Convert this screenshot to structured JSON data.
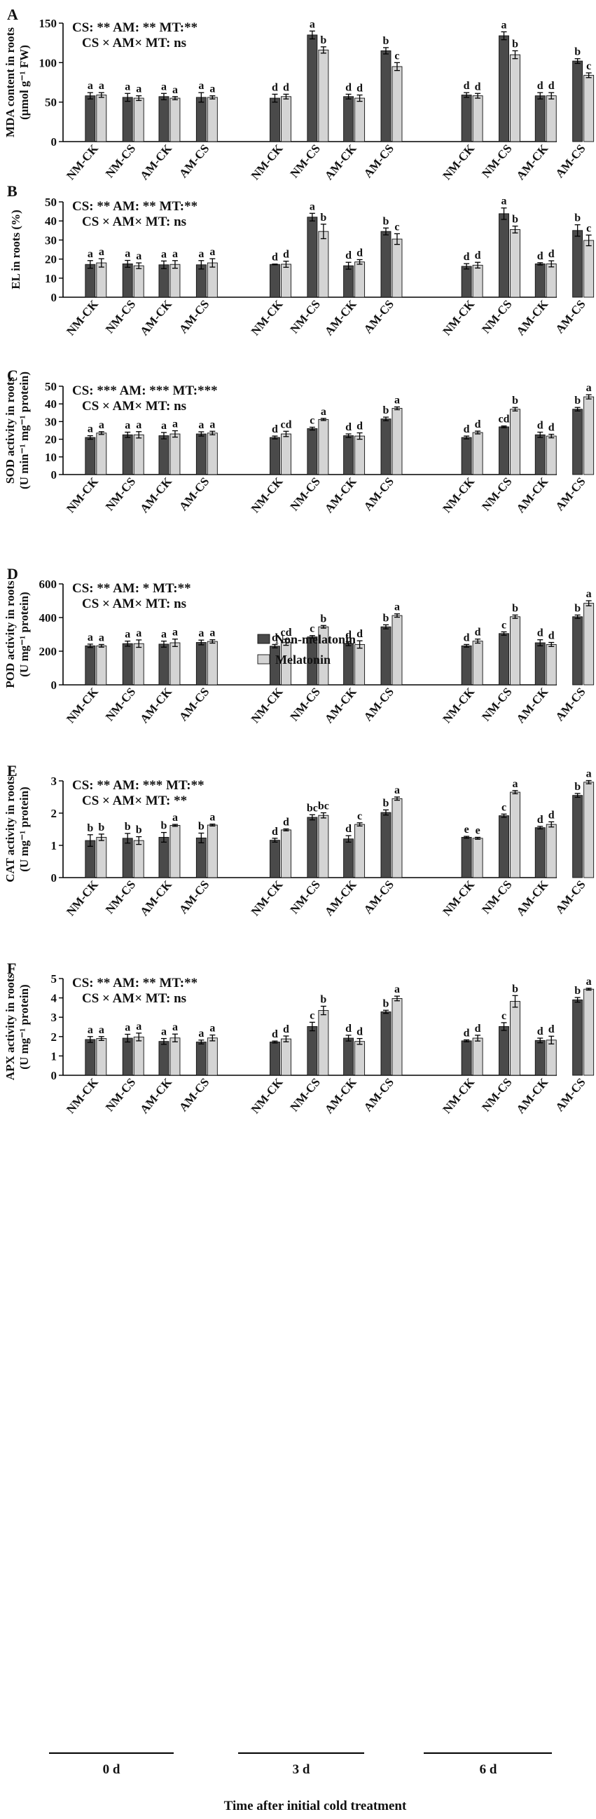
{
  "figure": {
    "xaxis_title": "Time after initial cold treatment",
    "time_groups": [
      "0 d",
      "3 d",
      "6 d"
    ],
    "treatments": [
      "NM-CK",
      "NM-CS",
      "AM-CK",
      "AM-CS"
    ],
    "legend": {
      "dark": "Non-melatonin",
      "light": "Melatonin"
    },
    "colors": {
      "dark": "#4a4a4a",
      "light": "#d4d4d4"
    }
  },
  "chart_data": [
    {
      "type": "bar",
      "panel": "A",
      "ylabel_lines": [
        "MDA content in roots",
        "(μmol g⁻¹ FW)"
      ],
      "stats": [
        "CS: **  AM: ** MT:**",
        "CS × AM× MT: ns"
      ],
      "ylim": [
        0,
        150
      ],
      "yticks": [
        0,
        50,
        100,
        150
      ],
      "series": [
        {
          "name": "Non-melatonin",
          "values": [
            58,
            56,
            57,
            56,
            55,
            135,
            57,
            115,
            59,
            134,
            58,
            102
          ],
          "errors": [
            4,
            5,
            4,
            6,
            5,
            5,
            3,
            4,
            3,
            5,
            4,
            3
          ],
          "letters": [
            "a",
            "a",
            "a",
            "a",
            "d",
            "a",
            "d",
            "b",
            "d",
            "a",
            "d",
            "b"
          ]
        },
        {
          "name": "Melatonin",
          "values": [
            59,
            55,
            55,
            56,
            57,
            116,
            55,
            95,
            58,
            110,
            58,
            84
          ],
          "errors": [
            3,
            3,
            2,
            2,
            3,
            4,
            4,
            5,
            3,
            5,
            4,
            3
          ],
          "letters": [
            "a",
            "a",
            "a",
            "a",
            "d",
            "b",
            "d",
            "c",
            "d",
            "b",
            "d",
            "c"
          ]
        }
      ]
    },
    {
      "type": "bar",
      "panel": "B",
      "ylabel_lines": [
        "EL in roots (%)"
      ],
      "stats": [
        "CS: **  AM: ** MT:**",
        "CS × AM× MT: ns"
      ],
      "ylim": [
        0,
        50
      ],
      "yticks": [
        0,
        10,
        20,
        30,
        40,
        50
      ],
      "series": [
        {
          "name": "Non-melatonin",
          "values": [
            17.2,
            17.5,
            17.0,
            17.0,
            17.2,
            42.0,
            16.5,
            34.5,
            16.2,
            43.8,
            17.5,
            35.0
          ],
          "errors": [
            2.0,
            1.8,
            2.0,
            2.2,
            0.2,
            2.0,
            1.8,
            1.8,
            1.4,
            3.0,
            0.6,
            3.0
          ],
          "letters": [
            "a",
            "a",
            "a",
            "a",
            "d",
            "a",
            "d",
            "b",
            "d",
            "a",
            "d",
            "b"
          ]
        },
        {
          "name": "Melatonin",
          "values": [
            18.0,
            16.5,
            17.2,
            18.0,
            17.3,
            34.5,
            18.5,
            30.5,
            16.8,
            35.5,
            17.5,
            29.8
          ],
          "errors": [
            2.2,
            1.5,
            2.0,
            2.2,
            1.6,
            3.8,
            1.2,
            2.8,
            1.5,
            1.8,
            1.6,
            2.8
          ],
          "letters": [
            "a",
            "a",
            "a",
            "a",
            "d",
            "b",
            "d",
            "c",
            "d",
            "b",
            "d",
            "c"
          ]
        }
      ]
    },
    {
      "type": "bar",
      "panel": "C",
      "ylabel_lines": [
        "SOD activity in roots",
        "(U min⁻¹ mg⁻¹ protein)"
      ],
      "stats": [
        "CS: *** AM: *** MT:***",
        "CS × AM× MT: ns"
      ],
      "ylim": [
        0,
        50
      ],
      "yticks": [
        0,
        10,
        20,
        30,
        40,
        50
      ],
      "series": [
        {
          "name": "Non-melatonin",
          "values": [
            21.0,
            22.5,
            22.0,
            23.0,
            21.0,
            26.0,
            22.0,
            31.5,
            21.0,
            27.0,
            22.5,
            37.0
          ],
          "errors": [
            1.0,
            1.5,
            1.8,
            1.2,
            0.8,
            0.8,
            1.0,
            1.0,
            0.8,
            0.5,
            1.5,
            1.0
          ],
          "letters": [
            "a",
            "a",
            "a",
            "a",
            "d",
            "c",
            "d",
            "b",
            "d",
            "cd",
            "d",
            "b"
          ]
        },
        {
          "name": "Melatonin",
          "values": [
            23.5,
            22.5,
            23.0,
            23.5,
            23.0,
            31.2,
            21.8,
            37.5,
            23.8,
            37.0,
            21.8,
            44.0
          ],
          "errors": [
            0.8,
            1.8,
            1.8,
            1.0,
            1.5,
            0.6,
            1.8,
            0.8,
            0.8,
            1.0,
            1.0,
            1.2
          ],
          "letters": [
            "a",
            "a",
            "a",
            "a",
            "cd",
            "a",
            "d",
            "a",
            "d",
            "b",
            "d",
            "a"
          ]
        }
      ]
    },
    {
      "type": "bar",
      "panel": "D",
      "ylabel_lines": [
        "POD activity in roots",
        "(U mg⁻¹ protein)"
      ],
      "stats": [
        "CS: **  AM: * MT:**",
        "CS × AM× MT: ns"
      ],
      "ylim": [
        0,
        600
      ],
      "yticks": [
        0,
        200,
        400,
        600
      ],
      "series": [
        {
          "name": "Non-melatonin",
          "values": [
            232,
            245,
            242,
            252,
            230,
            285,
            245,
            345,
            232,
            305,
            250,
            405
          ],
          "errors": [
            10,
            15,
            18,
            14,
            10,
            8,
            12,
            12,
            8,
            10,
            18,
            10
          ],
          "letters": [
            "a",
            "a",
            "a",
            "a",
            "d",
            "c",
            "d",
            "b",
            "d",
            "c",
            "d",
            "b"
          ]
        },
        {
          "name": "Melatonin",
          "values": [
            232,
            245,
            250,
            258,
            253,
            345,
            240,
            412,
            260,
            405,
            240,
            485
          ],
          "errors": [
            8,
            22,
            22,
            10,
            18,
            8,
            22,
            10,
            12,
            10,
            12,
            15
          ],
          "letters": [
            "a",
            "a",
            "a",
            "a",
            "cd",
            "b",
            "d",
            "a",
            "d",
            "b",
            "d",
            "a"
          ]
        }
      ]
    },
    {
      "type": "bar",
      "panel": "E",
      "ylabel_lines": [
        "CAT activity in roots",
        "(U mg⁻¹ protein)"
      ],
      "stats": [
        "CS: **  AM: *** MT:**",
        "CS × AM× MT: **"
      ],
      "ylim": [
        0,
        3
      ],
      "yticks": [
        0,
        1,
        2,
        3
      ],
      "series": [
        {
          "name": "Non-melatonin",
          "values": [
            1.15,
            1.22,
            1.25,
            1.23,
            1.16,
            1.87,
            1.2,
            2.02,
            1.25,
            1.92,
            1.55,
            2.55
          ],
          "errors": [
            0.18,
            0.15,
            0.15,
            0.15,
            0.06,
            0.08,
            0.1,
            0.08,
            0.03,
            0.05,
            0.04,
            0.06
          ],
          "letters": [
            "b",
            "b",
            "b",
            "b",
            "d",
            "bc",
            "d",
            "b",
            "e",
            "c",
            "d",
            "b"
          ]
        },
        {
          "name": "Melatonin",
          "values": [
            1.25,
            1.15,
            1.62,
            1.63,
            1.48,
            1.93,
            1.65,
            2.45,
            1.22,
            2.65,
            1.65,
            2.96
          ],
          "errors": [
            0.1,
            0.12,
            0.03,
            0.03,
            0.03,
            0.08,
            0.05,
            0.05,
            0.03,
            0.05,
            0.08,
            0.05
          ],
          "letters": [
            "b",
            "b",
            "a",
            "a",
            "d",
            "bc",
            "c",
            "a",
            "e",
            "a",
            "d",
            "a"
          ]
        }
      ]
    },
    {
      "type": "bar",
      "panel": "F",
      "ylabel_lines": [
        "APX activity in roots",
        "(U mg⁻¹ protein)"
      ],
      "stats": [
        "CS: **  AM: ** MT:**",
        "CS × AM× MT: ns"
      ],
      "ylim": [
        0,
        5
      ],
      "yticks": [
        0,
        1,
        2,
        3,
        4,
        5
      ],
      "series": [
        {
          "name": "Non-melatonin",
          "values": [
            1.85,
            1.92,
            1.75,
            1.72,
            1.72,
            2.52,
            1.92,
            3.28,
            1.78,
            2.52,
            1.8,
            3.9
          ],
          "errors": [
            0.15,
            0.2,
            0.15,
            0.1,
            0.05,
            0.22,
            0.15,
            0.08,
            0.05,
            0.2,
            0.12,
            0.12
          ],
          "letters": [
            "a",
            "a",
            "a",
            "a",
            "d",
            "c",
            "d",
            "b",
            "d",
            "c",
            "d",
            "b"
          ]
        },
        {
          "name": "Melatonin",
          "values": [
            1.9,
            1.98,
            1.93,
            1.93,
            1.88,
            3.35,
            1.75,
            3.97,
            1.92,
            3.82,
            1.82,
            4.45
          ],
          "errors": [
            0.1,
            0.2,
            0.2,
            0.15,
            0.15,
            0.22,
            0.15,
            0.12,
            0.15,
            0.3,
            0.2,
            0.05
          ],
          "letters": [
            "a",
            "a",
            "a",
            "a",
            "d",
            "b",
            "d",
            "a",
            "d",
            "b",
            "d",
            "a"
          ]
        }
      ]
    }
  ]
}
